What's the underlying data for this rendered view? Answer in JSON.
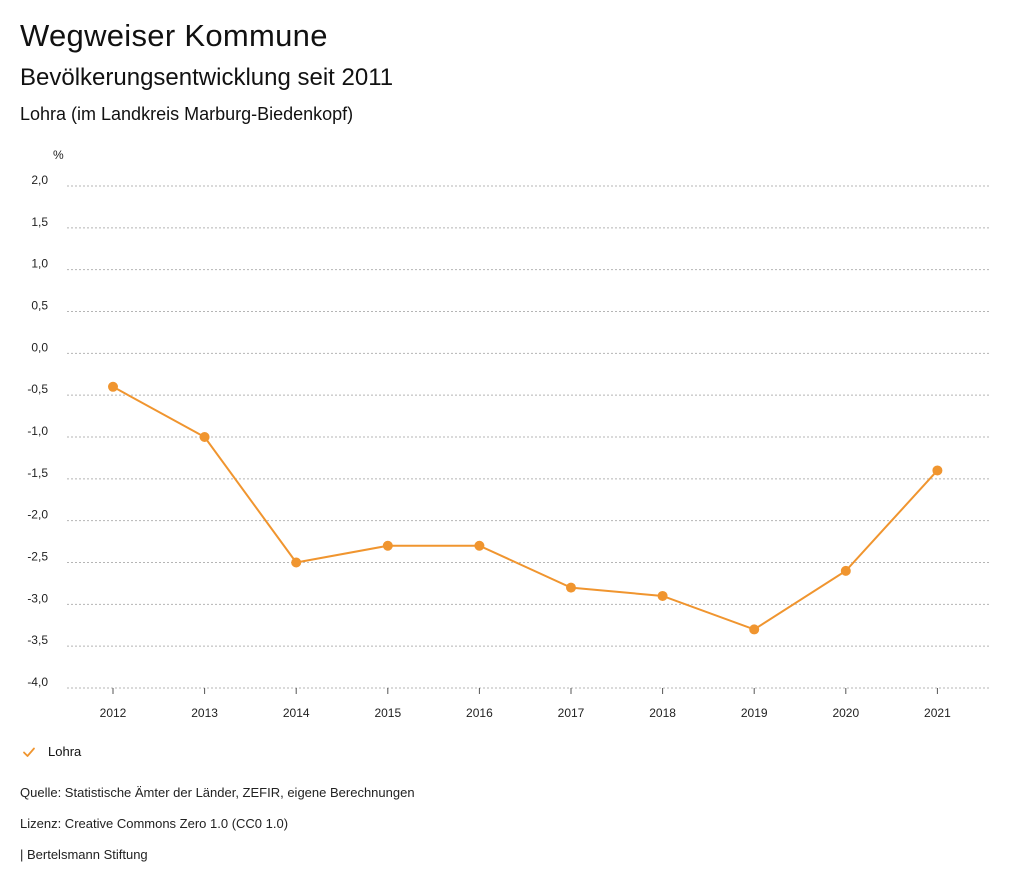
{
  "header": {
    "title": "Wegweiser Kommune",
    "subtitle": "Bevölkerungsentwicklung seit 2011",
    "region": "Lohra (im Landkreis Marburg-Biedenkopf)"
  },
  "chart_data": {
    "type": "line",
    "title": "",
    "xlabel": "",
    "ylabel": "%",
    "categories": [
      "2012",
      "2013",
      "2014",
      "2015",
      "2016",
      "2017",
      "2018",
      "2019",
      "2020",
      "2021"
    ],
    "series": [
      {
        "name": "Lohra",
        "color": "#F0952F",
        "values": [
          -0.4,
          -1.0,
          -2.5,
          -2.3,
          -2.3,
          -2.8,
          -2.9,
          -3.3,
          -2.6,
          -1.4
        ]
      }
    ],
    "ylim": [
      -4.0,
      2.0
    ],
    "yticks": [
      "2,0",
      "1,5",
      "1,0",
      "0,5",
      "0,0",
      "-0,5",
      "-1,0",
      "-1,5",
      "-2,0",
      "-2,5",
      "-3,0",
      "-3,5",
      "-4,0"
    ],
    "grid": true,
    "legend_position": "bottom-left"
  },
  "legend": {
    "label": "Lohra",
    "icon": "check-icon"
  },
  "footer": {
    "source": "Quelle: Statistische Ämter der Länder, ZEFIR, eigene Berechnungen",
    "license": "Lizenz: Creative Commons Zero 1.0 (CC0 1.0)",
    "publisher": "| Bertelsmann Stiftung"
  }
}
